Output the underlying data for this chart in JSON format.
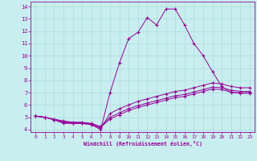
{
  "xlabel": "Windchill (Refroidissement éolien,°C)",
  "bg_color": "#c8eef0",
  "line_color": "#990099",
  "grid_color": "#aadddd",
  "xlim": [
    -0.5,
    23.5
  ],
  "ylim": [
    3.8,
    14.4
  ],
  "xticks": [
    0,
    1,
    2,
    3,
    4,
    5,
    6,
    7,
    8,
    9,
    10,
    11,
    12,
    13,
    14,
    15,
    16,
    17,
    18,
    19,
    20,
    21,
    22,
    23
  ],
  "yticks": [
    4,
    5,
    6,
    7,
    8,
    9,
    10,
    11,
    12,
    13,
    14
  ],
  "curves": [
    {
      "x": [
        0,
        1,
        2,
        3,
        4,
        5,
        6,
        7,
        8,
        9,
        10,
        11,
        12,
        13,
        14,
        15,
        16,
        17,
        18,
        19,
        20,
        21,
        22,
        23
      ],
      "y": [
        5.1,
        5.0,
        4.8,
        4.5,
        4.5,
        4.5,
        4.4,
        4.0,
        7.0,
        9.4,
        11.4,
        11.9,
        13.1,
        12.5,
        13.8,
        13.8,
        12.5,
        11.0,
        10.0,
        8.7,
        7.5,
        7.0,
        7.0,
        7.0
      ]
    },
    {
      "x": [
        0,
        1,
        2,
        3,
        4,
        5,
        6,
        7,
        8,
        9,
        10,
        11,
        12,
        13,
        14,
        15,
        16,
        17,
        18,
        19,
        20,
        21,
        22,
        23
      ],
      "y": [
        5.1,
        5.0,
        4.8,
        4.6,
        4.5,
        4.5,
        4.4,
        4.1,
        5.3,
        5.7,
        6.0,
        6.3,
        6.5,
        6.7,
        6.9,
        7.1,
        7.2,
        7.4,
        7.6,
        7.8,
        7.7,
        7.5,
        7.4,
        7.4
      ]
    },
    {
      "x": [
        0,
        1,
        2,
        3,
        4,
        5,
        6,
        7,
        8,
        9,
        10,
        11,
        12,
        13,
        14,
        15,
        16,
        17,
        18,
        19,
        20,
        21,
        22,
        23
      ],
      "y": [
        5.1,
        5.0,
        4.85,
        4.7,
        4.6,
        4.6,
        4.5,
        4.25,
        5.0,
        5.35,
        5.7,
        5.95,
        6.15,
        6.35,
        6.55,
        6.75,
        6.85,
        7.05,
        7.25,
        7.45,
        7.4,
        7.2,
        7.1,
        7.1
      ]
    },
    {
      "x": [
        0,
        1,
        2,
        3,
        4,
        5,
        6,
        7,
        8,
        9,
        10,
        11,
        12,
        13,
        14,
        15,
        16,
        17,
        18,
        19,
        20,
        21,
        22,
        23
      ],
      "y": [
        5.1,
        5.0,
        4.8,
        4.65,
        4.55,
        4.55,
        4.45,
        4.2,
        4.85,
        5.2,
        5.55,
        5.8,
        6.0,
        6.2,
        6.4,
        6.6,
        6.7,
        6.9,
        7.1,
        7.3,
        7.25,
        7.05,
        6.95,
        6.95
      ]
    }
  ]
}
